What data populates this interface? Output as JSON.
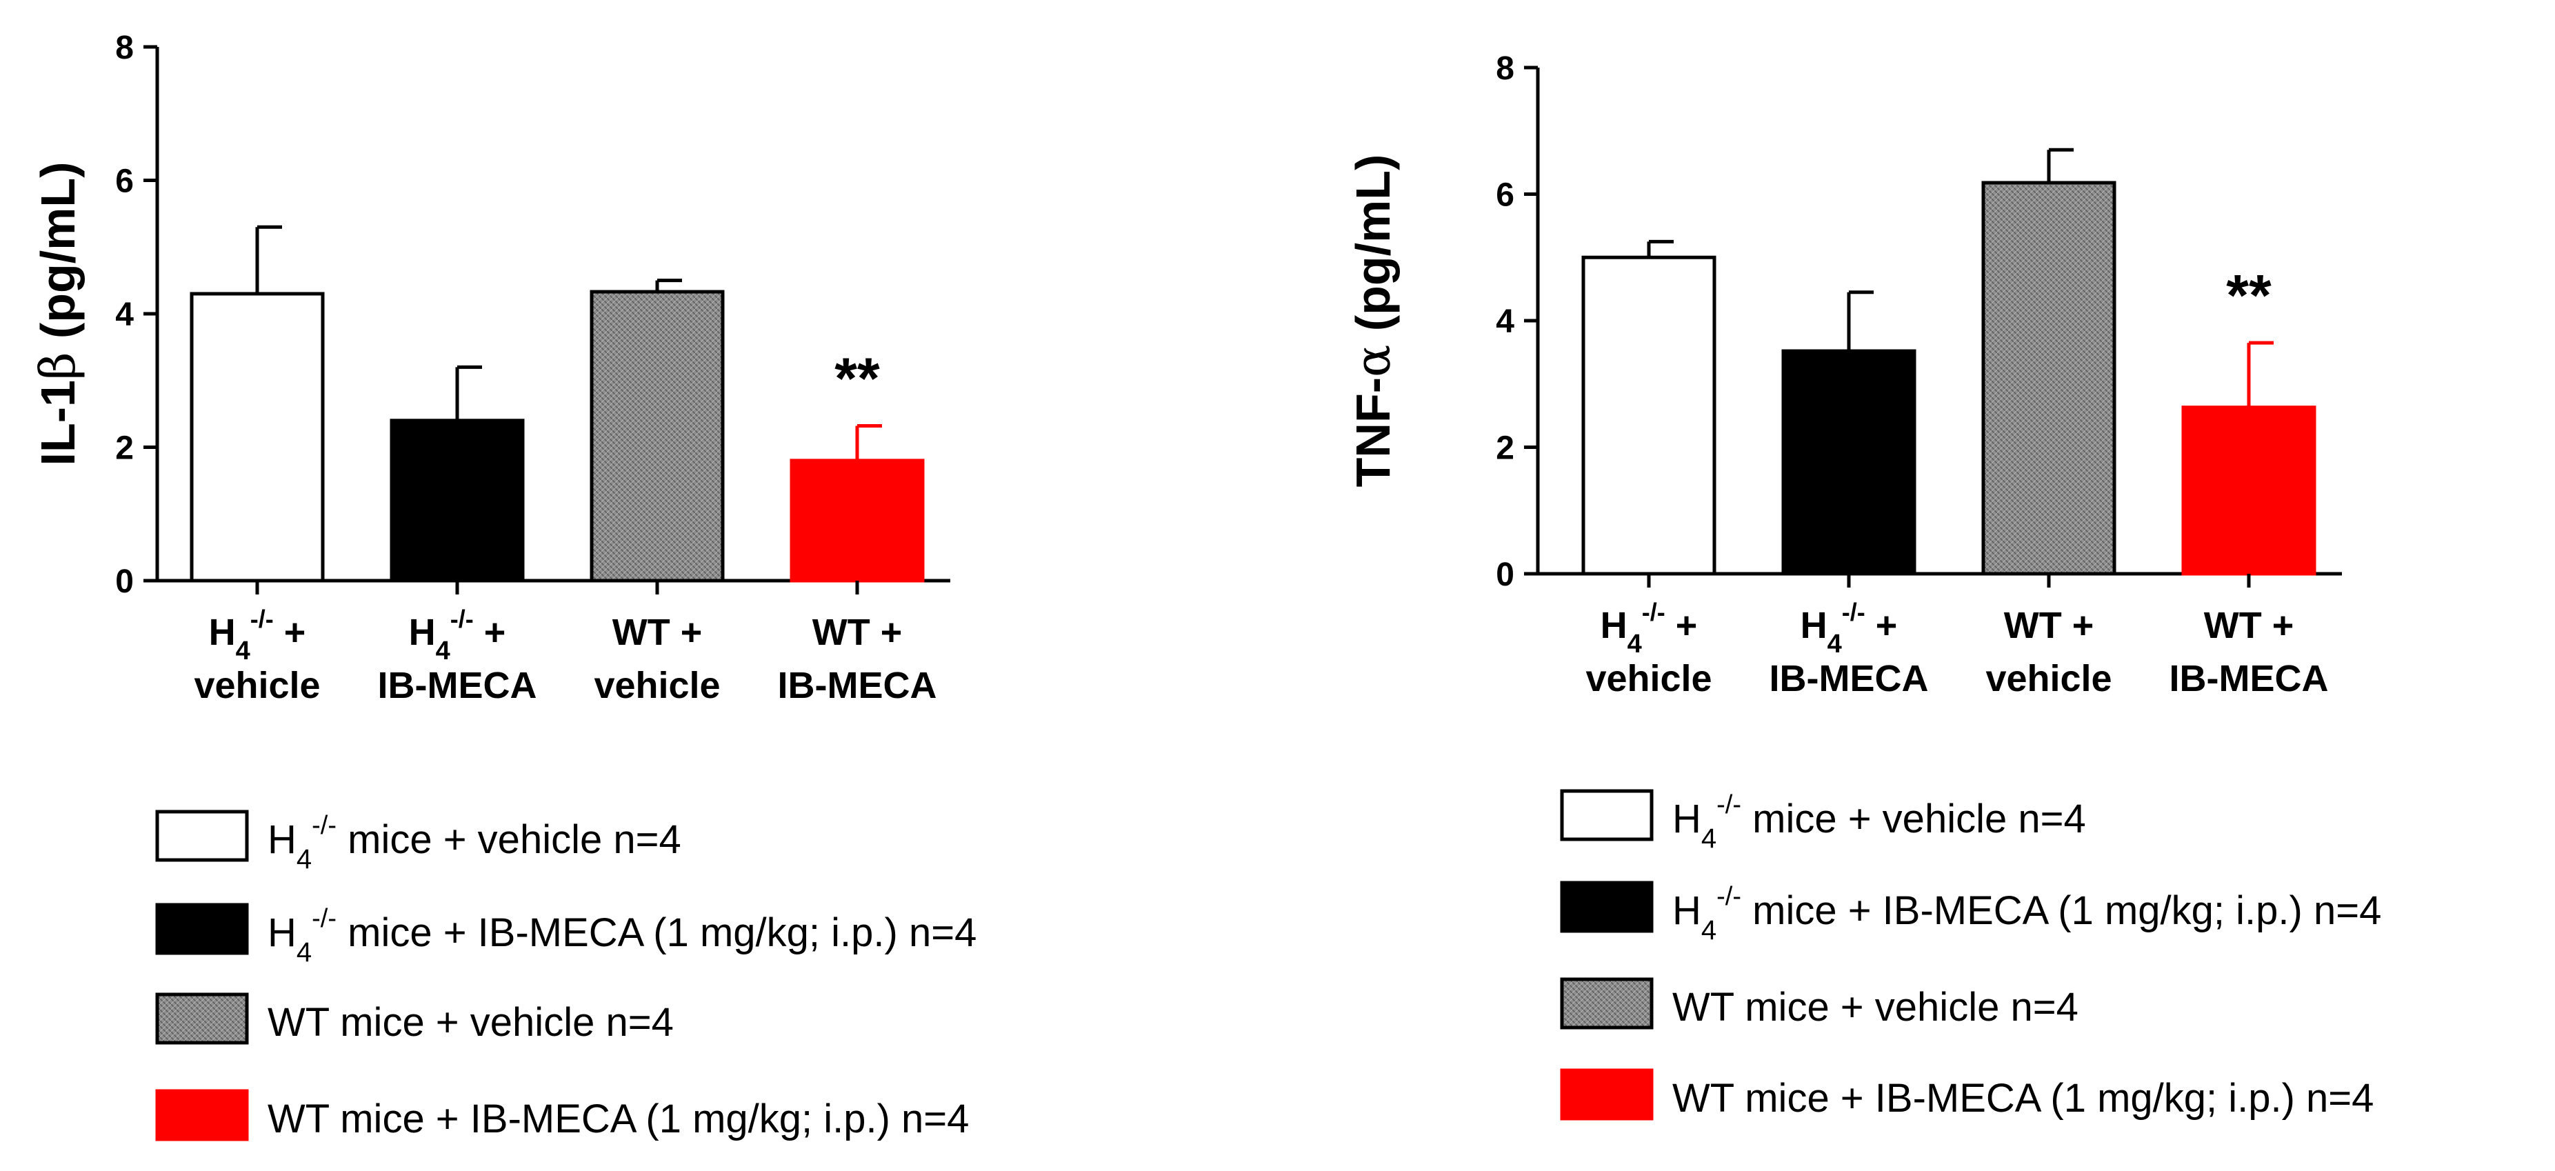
{
  "groups": [
    {
      "prefix": "H",
      "sub": "4",
      "sup": "-/-",
      "suffix": "+",
      "line2": "vehicle",
      "fill": "#ffffff",
      "pattern": false
    },
    {
      "prefix": "H",
      "sub": "4",
      "sup": "-/-",
      "suffix": "+",
      "line2": "IB-MECA",
      "fill": "#000000",
      "pattern": false
    },
    {
      "prefix": "WT +",
      "sub": "",
      "sup": "",
      "suffix": "",
      "line2": "vehicle",
      "fill": "#8c8c8c",
      "pattern": true
    },
    {
      "prefix": "WT +",
      "sub": "",
      "sup": "",
      "suffix": "",
      "line2": "IB-MECA",
      "fill": "#ff0000",
      "pattern": false
    }
  ],
  "chart_data": [
    {
      "type": "bar",
      "ylabel_main": "IL-1",
      "ylabel_greek": "β",
      "ylabel_unit": "(pg/mL)",
      "ylim": [
        0,
        8
      ],
      "yticks": [
        "0",
        "2",
        "4",
        "6",
        "8"
      ],
      "values": [
        4.3,
        2.4,
        4.33,
        1.8
      ],
      "errors": [
        1.0,
        0.8,
        0.17,
        0.52
      ],
      "significance": [
        "",
        "",
        "",
        "**"
      ],
      "legend": [
        {
          "prefix": "H",
          "sub": "4",
          "sup": "-/-",
          "text": " mice + vehicle n=4"
        },
        {
          "prefix": "H",
          "sub": "4",
          "sup": "-/-",
          "text": " mice + IB-MECA (1 mg/kg; i.p.) n=4"
        },
        {
          "prefix": "",
          "sub": "",
          "sup": "",
          "text": "WT mice + vehicle n=4"
        },
        {
          "prefix": "",
          "sub": "",
          "sup": "",
          "text": "WT mice + IB-MECA (1 mg/kg; i.p.) n=4"
        }
      ]
    },
    {
      "type": "bar",
      "ylabel_main": "TNF-",
      "ylabel_greek": "α",
      "ylabel_unit": "(pg/mL)",
      "ylim": [
        0,
        8
      ],
      "yticks": [
        "0",
        "2",
        "4",
        "6",
        "8"
      ],
      "values": [
        5.0,
        3.52,
        6.18,
        2.63
      ],
      "errors": [
        0.25,
        0.93,
        0.52,
        1.02
      ],
      "significance": [
        "",
        "",
        "",
        "**"
      ],
      "legend": [
        {
          "prefix": "H",
          "sub": "4",
          "sup": "-/-",
          "text": " mice + vehicle n=4"
        },
        {
          "prefix": "H",
          "sub": "4",
          "sup": "-/-",
          "text": " mice + IB-MECA (1 mg/kg; i.p.) n=4"
        },
        {
          "prefix": "",
          "sub": "",
          "sup": "",
          "text": "WT mice + vehicle n=4"
        },
        {
          "prefix": "",
          "sub": "",
          "sup": "",
          "text": "WT mice + IB-MECA (1 mg/kg; i.p.) n=4"
        }
      ]
    }
  ]
}
